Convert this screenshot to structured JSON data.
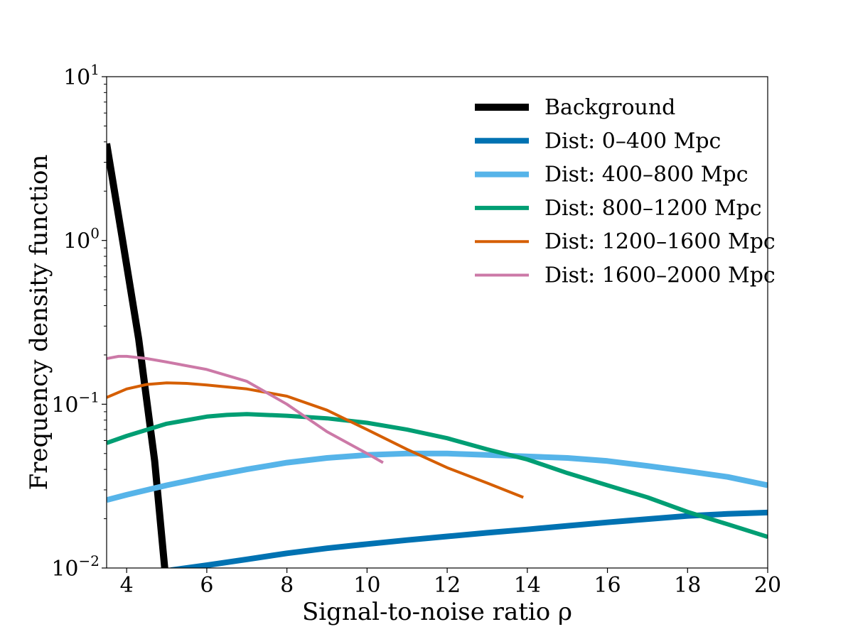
{
  "chart_data": {
    "type": "line",
    "xlabel": "Signal-to-noise ratio ρ",
    "ylabel": "Frequency density function",
    "xlim": [
      3.5,
      20
    ],
    "ylim": [
      0.01,
      10
    ],
    "y_scale": "log",
    "grid": false,
    "legend_position": "top-right",
    "x_ticks": [
      {
        "value": 4,
        "label": "4"
      },
      {
        "value": 6,
        "label": "6"
      },
      {
        "value": 8,
        "label": "8"
      },
      {
        "value": 10,
        "label": "10"
      },
      {
        "value": 12,
        "label": "12"
      },
      {
        "value": 14,
        "label": "14"
      },
      {
        "value": 16,
        "label": "16"
      },
      {
        "value": 18,
        "label": "18"
      },
      {
        "value": 20,
        "label": "20"
      }
    ],
    "y_ticks": [
      {
        "value": 10,
        "base": "10",
        "exp": "1"
      },
      {
        "value": 1,
        "base": "10",
        "exp": "0"
      },
      {
        "value": 0.1,
        "base": "10",
        "exp": "−1"
      },
      {
        "value": 0.01,
        "base": "10",
        "exp": "−2"
      }
    ],
    "series": [
      {
        "name": "Background",
        "color": "#000000",
        "width": 10,
        "x": [
          3.5,
          3.9,
          4.3,
          4.7,
          4.95
        ],
        "y": [
          3.9,
          1.0,
          0.25,
          0.045,
          0.01
        ]
      },
      {
        "name": "Dist: 0–400 Mpc",
        "color": "#0072b2",
        "width": 8,
        "x": [
          5.1,
          6.0,
          7.0,
          8.0,
          9.0,
          10.0,
          11.0,
          12.0,
          13.0,
          14.0,
          15.0,
          16.0,
          17.0,
          18.0,
          19.0,
          20.0
        ],
        "y": [
          0.0097,
          0.0104,
          0.0113,
          0.0123,
          0.0132,
          0.014,
          0.0148,
          0.0156,
          0.0164,
          0.0172,
          0.0181,
          0.019,
          0.0199,
          0.0208,
          0.0214,
          0.0218
        ]
      },
      {
        "name": "Dist: 400–800 Mpc",
        "color": "#56b4e9",
        "width": 8,
        "x": [
          3.5,
          4.0,
          5.0,
          6.0,
          7.0,
          8.0,
          9.0,
          10.0,
          11.0,
          12.0,
          13.0,
          14.0,
          15.0,
          16.0,
          17.0,
          18.0,
          19.0,
          20.0
        ],
        "y": [
          0.026,
          0.028,
          0.032,
          0.036,
          0.04,
          0.044,
          0.047,
          0.049,
          0.05,
          0.05,
          0.049,
          0.048,
          0.047,
          0.045,
          0.042,
          0.039,
          0.036,
          0.032
        ]
      },
      {
        "name": "Dist: 800–1200 Mpc",
        "color": "#009e73",
        "width": 6,
        "x": [
          3.5,
          4.0,
          5.0,
          6.0,
          6.5,
          7.0,
          8.0,
          9.0,
          10.0,
          11.0,
          12.0,
          13.0,
          14.0,
          15.0,
          16.0,
          17.0,
          18.0,
          19.0,
          20.0
        ],
        "y": [
          0.058,
          0.064,
          0.076,
          0.084,
          0.086,
          0.087,
          0.085,
          0.082,
          0.077,
          0.07,
          0.062,
          0.053,
          0.046,
          0.038,
          0.032,
          0.027,
          0.022,
          0.0185,
          0.0155
        ]
      },
      {
        "name": "Dist: 1200–1600 Mpc",
        "color": "#d55e00",
        "width": 4,
        "x": [
          3.5,
          4.0,
          4.5,
          5.0,
          5.5,
          6.0,
          7.0,
          8.0,
          9.0,
          10.0,
          11.0,
          12.0,
          13.0,
          13.9
        ],
        "y": [
          0.11,
          0.124,
          0.132,
          0.135,
          0.134,
          0.131,
          0.124,
          0.112,
          0.092,
          0.07,
          0.053,
          0.041,
          0.033,
          0.027
        ]
      },
      {
        "name": "Dist: 1600–2000 Mpc",
        "color": "#cc79a7",
        "width": 4,
        "x": [
          3.5,
          3.8,
          4.0,
          4.5,
          5.0,
          6.0,
          7.0,
          8.0,
          9.0,
          10.0,
          10.4
        ],
        "y": [
          0.19,
          0.196,
          0.196,
          0.19,
          0.181,
          0.163,
          0.138,
          0.1,
          0.068,
          0.05,
          0.044
        ]
      }
    ]
  }
}
